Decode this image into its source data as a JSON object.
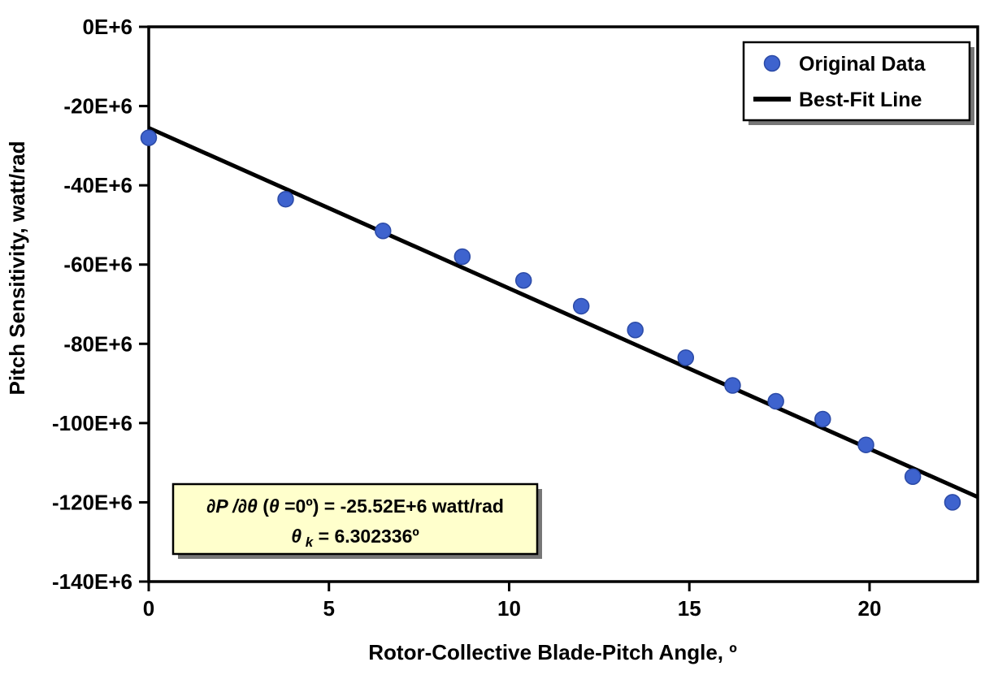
{
  "chart_data": {
    "type": "scatter",
    "title": "",
    "xlabel": "Rotor-Collective Blade-Pitch Angle, º",
    "ylabel": "Pitch Sensitivity, watt/rad",
    "xlim": [
      0,
      23
    ],
    "ylim_e6": [
      -140,
      0
    ],
    "x_ticks": [
      0,
      5,
      10,
      15,
      20
    ],
    "x_tick_labels": [
      "0",
      "5",
      "10",
      "15",
      "20"
    ],
    "y_ticks_e6": [
      0,
      -20,
      -40,
      -60,
      -80,
      -100,
      -120,
      -140
    ],
    "y_tick_labels": [
      "0E+6",
      "-20E+6",
      "-40E+6",
      "-60E+6",
      "-80E+6",
      "-100E+6",
      "-120E+6",
      "-140E+6"
    ],
    "grid": false,
    "legend_position": "top-right",
    "series": [
      {
        "name": "Original Data",
        "type": "scatter",
        "color": "#3E63CE",
        "edge_color": "#2B4AA6",
        "points_x": [
          0,
          3.8,
          6.5,
          8.7,
          10.4,
          12.0,
          13.5,
          14.9,
          16.2,
          17.4,
          18.7,
          19.9,
          21.2,
          22.3
        ],
        "points_y_e6": [
          -28,
          -43.5,
          -51.5,
          -58,
          -64,
          -70.5,
          -76.5,
          -83.5,
          -90.5,
          -94.5,
          -99,
          -105.5,
          -113.5,
          -120
        ]
      },
      {
        "name": "Best-Fit Line",
        "type": "line",
        "color": "#000000",
        "x": [
          0,
          23
        ],
        "y_e6": [
          -25.52,
          -118.66
        ]
      }
    ],
    "annotation": {
      "bg_color": "#FFFFCC",
      "line1_segments": [
        {
          "text": "∂P /∂θ",
          "italic": true
        },
        {
          "text": " (",
          "italic": false
        },
        {
          "text": "θ",
          "italic": true
        },
        {
          "text": " =0º) = -25.52E+6 watt/rad",
          "italic": false
        }
      ],
      "line2_segments": [
        {
          "text": "θ",
          "italic": true
        },
        {
          "text": " k",
          "italic": true,
          "sub": true
        },
        {
          "text": " = 6.302336º",
          "italic": false
        }
      ]
    }
  },
  "colors": {
    "frame": "#000000",
    "shadow": "#777777",
    "legend_bg": "#FFFFFF",
    "annotation_bg": "#FFFFCC"
  },
  "legend": {
    "items": [
      {
        "label": "Original Data",
        "marker": "circle"
      },
      {
        "label": "Best-Fit Line",
        "marker": "line"
      }
    ]
  }
}
